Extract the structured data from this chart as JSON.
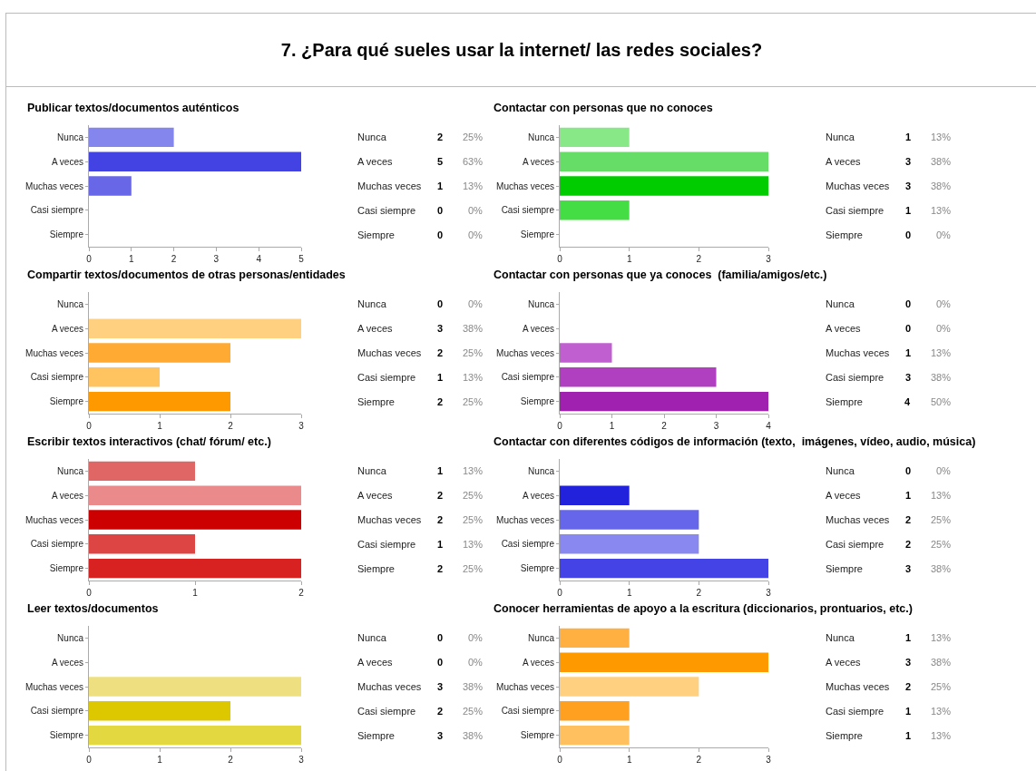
{
  "chart_data": [
    {
      "type": "bar",
      "orientation": "horizontal",
      "title": "Publicar textos/documentos auténticos",
      "categories": [
        "Nunca",
        "A veces",
        "Muchas veces",
        "Casi siempre",
        "Siempre"
      ],
      "values": [
        2,
        5,
        1,
        0,
        0
      ],
      "colors": [
        "#8585ee",
        "#4343e4",
        "#6767e8",
        "#8585ee",
        "#8585ee"
      ],
      "xlim": [
        0,
        5
      ],
      "xticks": [
        0,
        1,
        2,
        3,
        4,
        5
      ],
      "data_labels": true,
      "annotations": [
        "25%",
        "63%",
        "13%",
        "0%",
        "0%",
        "7. ¿Para qué sueles usar la internet/ las redes sociales?"
      ]
    },
    {
      "type": "bar",
      "orientation": "horizontal",
      "title": "Contactar con personas que no conoces",
      "categories": [
        "Nunca",
        "A veces",
        "Muchas veces",
        "Casi siempre",
        "Siempre"
      ],
      "values": [
        1,
        3,
        3,
        1,
        0
      ],
      "colors": [
        "#88e888",
        "#66dd66",
        "#00cc00",
        "#44dd44",
        "#88e888"
      ],
      "xlim": [
        0,
        3
      ],
      "xticks": [
        0,
        1,
        2,
        3
      ],
      "data_labels": true,
      "annotations": [
        "13%",
        "38%",
        "38%",
        "13%",
        "0%"
      ]
    },
    {
      "type": "bar",
      "orientation": "horizontal",
      "title": "Compartir textos/documentos de otras personas/entidades",
      "categories": [
        "Nunca",
        "A veces",
        "Muchas veces",
        "Casi siempre",
        "Siempre"
      ],
      "values": [
        0,
        3,
        2,
        1,
        2
      ],
      "colors": [
        "#ffd080",
        "#ffd080",
        "#ffaa33",
        "#ffc460",
        "#ff9900"
      ],
      "xlim": [
        0,
        3
      ],
      "xticks": [
        0,
        1,
        2,
        3
      ],
      "data_labels": true,
      "annotations": [
        "0%",
        "38%",
        "25%",
        "13%",
        "25%"
      ]
    },
    {
      "type": "bar",
      "orientation": "horizontal",
      "title": "Contactar con personas que ya conoces  (familia/amigos/etc.)",
      "categories": [
        "Nunca",
        "A veces",
        "Muchas veces",
        "Casi siempre",
        "Siempre"
      ],
      "values": [
        0,
        0,
        1,
        3,
        4
      ],
      "colors": [
        "#c060d0",
        "#c060d0",
        "#c060d0",
        "#b040c0",
        "#a020b0"
      ],
      "xlim": [
        0,
        4
      ],
      "xticks": [
        0,
        1,
        2,
        3,
        4
      ],
      "data_labels": true,
      "annotations": [
        "0%",
        "0%",
        "13%",
        "38%",
        "50%"
      ]
    },
    {
      "type": "bar",
      "orientation": "horizontal",
      "title": "Escribir textos interactivos (chat/ fórum/ etc.)",
      "categories": [
        "Nunca",
        "A veces",
        "Muchas veces",
        "Casi siempre",
        "Siempre"
      ],
      "values": [
        1,
        2,
        2,
        1,
        2
      ],
      "colors": [
        "#e06666",
        "#ea8a8a",
        "#cc0000",
        "#dd4444",
        "#d82222"
      ],
      "xlim": [
        0,
        2
      ],
      "xticks": [
        0,
        1,
        2
      ],
      "data_labels": true,
      "annotations": [
        "13%",
        "25%",
        "25%",
        "13%",
        "25%"
      ]
    },
    {
      "type": "bar",
      "orientation": "horizontal",
      "title": "Contactar con diferentes códigos de información (texto,  imágenes, vídeo, audio, música)",
      "categories": [
        "Nunca",
        "A veces",
        "Muchas veces",
        "Casi siempre",
        "Siempre"
      ],
      "values": [
        0,
        1,
        2,
        2,
        3
      ],
      "colors": [
        "#2222dd",
        "#2222dd",
        "#6666ea",
        "#8888f0",
        "#4444e6"
      ],
      "xlim": [
        0,
        3
      ],
      "xticks": [
        0,
        1,
        2,
        3
      ],
      "data_labels": true,
      "annotations": [
        "0%",
        "13%",
        "25%",
        "25%",
        "38%"
      ]
    },
    {
      "type": "bar",
      "orientation": "horizontal",
      "title": "Leer textos/documentos",
      "categories": [
        "Nunca",
        "A veces",
        "Muchas veces",
        "Casi siempre",
        "Siempre"
      ],
      "values": [
        0,
        0,
        3,
        2,
        3
      ],
      "colors": [
        "#eee080",
        "#eee080",
        "#eee080",
        "#ddc800",
        "#e4d840"
      ],
      "xlim": [
        0,
        3
      ],
      "xticks": [
        0,
        1,
        2,
        3
      ],
      "data_labels": true,
      "annotations": [
        "0%",
        "0%",
        "38%",
        "25%",
        "38%"
      ]
    },
    {
      "type": "bar",
      "orientation": "horizontal",
      "title": "Conocer herramientas de apoyo a la escritura (diccionarios, prontuarios, etc.)",
      "categories": [
        "Nunca",
        "A veces",
        "Muchas veces",
        "Casi siempre",
        "Siempre"
      ],
      "values": [
        1,
        3,
        2,
        1,
        1
      ],
      "colors": [
        "#ffb040",
        "#ff9900",
        "#ffd080",
        "#ffa020",
        "#ffc060"
      ],
      "xlim": [
        0,
        3
      ],
      "xticks": [
        0,
        1,
        2,
        3
      ],
      "data_labels": true,
      "annotations": [
        "13%",
        "38%",
        "25%",
        "13%",
        "13%"
      ]
    }
  ]
}
